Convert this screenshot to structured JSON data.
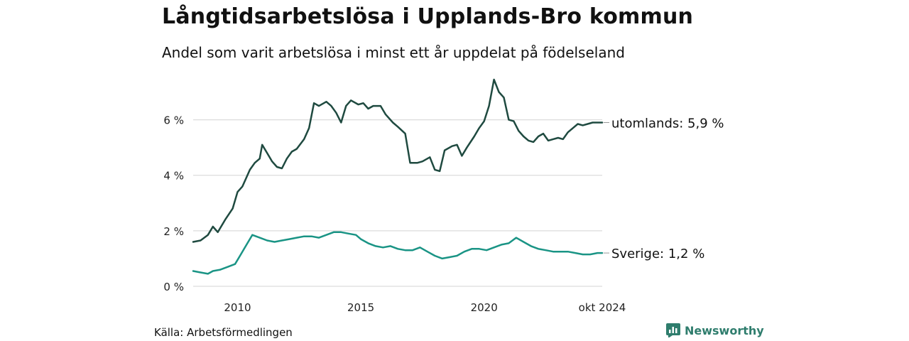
{
  "title": "Långtidsarbetslösa i Upplands-Bro kommun",
  "subtitle": "Andel som varit arbetslösa i minst ett år uppdelat på födelseland",
  "source": "Källa: Arbetsförmedlingen",
  "brand": {
    "name": "Newsworthy",
    "icon": "newsworthy-logo-icon",
    "color": "#2f7d6d"
  },
  "chart_data": {
    "type": "line",
    "title": "Långtidsarbetslösa i Upplands-Bro kommun",
    "subtitle": "Andel som varit arbetslösa i minst ett år uppdelat på födelseland",
    "xlabel": "",
    "ylabel": "",
    "xlim": [
      2008.2,
      2024.79
    ],
    "ylim": [
      0,
      7.5
    ],
    "grid": true,
    "y_ticks": [
      0,
      2,
      4,
      6
    ],
    "y_tick_labels": [
      "0 %",
      "2 %",
      "4 %",
      "6 %"
    ],
    "x_ticks": [
      2010,
      2015,
      2020,
      2024.79
    ],
    "x_tick_labels": [
      "2010",
      "2015",
      "2020",
      "okt 2024"
    ],
    "series": [
      {
        "name": "utomlands",
        "end_label": "utomlands: 5,9 %",
        "color": "#1f4a40",
        "x": [
          2008.2,
          2008.5,
          2008.8,
          2009.0,
          2009.2,
          2009.5,
          2009.8,
          2010.0,
          2010.2,
          2010.5,
          2010.7,
          2010.9,
          2011.0,
          2011.2,
          2011.4,
          2011.6,
          2011.8,
          2012.0,
          2012.2,
          2012.4,
          2012.7,
          2012.9,
          2013.1,
          2013.3,
          2013.6,
          2013.8,
          2014.0,
          2014.2,
          2014.4,
          2014.6,
          2014.9,
          2015.1,
          2015.3,
          2015.5,
          2015.8,
          2016.0,
          2016.3,
          2016.5,
          2016.8,
          2017.0,
          2017.3,
          2017.5,
          2017.8,
          2018.0,
          2018.2,
          2018.4,
          2018.7,
          2018.9,
          2019.1,
          2019.3,
          2019.6,
          2019.8,
          2020.0,
          2020.2,
          2020.4,
          2020.6,
          2020.8,
          2021.0,
          2021.2,
          2021.4,
          2021.6,
          2021.8,
          2022.0,
          2022.2,
          2022.4,
          2022.6,
          2022.8,
          2023.0,
          2023.2,
          2023.4,
          2023.6,
          2023.8,
          2024.0,
          2024.2,
          2024.4,
          2024.6,
          2024.79
        ],
        "values": [
          1.6,
          1.65,
          1.85,
          2.15,
          1.95,
          2.4,
          2.8,
          3.4,
          3.6,
          4.2,
          4.45,
          4.6,
          5.1,
          4.8,
          4.5,
          4.3,
          4.25,
          4.6,
          4.85,
          4.95,
          5.3,
          5.7,
          6.6,
          6.5,
          6.65,
          6.5,
          6.25,
          5.9,
          6.5,
          6.7,
          6.55,
          6.6,
          6.4,
          6.5,
          6.5,
          6.2,
          5.9,
          5.75,
          5.5,
          4.45,
          4.45,
          4.5,
          4.65,
          4.2,
          4.15,
          4.9,
          5.05,
          5.1,
          4.7,
          5.0,
          5.4,
          5.7,
          5.95,
          6.5,
          7.45,
          7.0,
          6.8,
          6.0,
          5.95,
          5.6,
          5.4,
          5.25,
          5.2,
          5.4,
          5.5,
          5.25,
          5.3,
          5.35,
          5.3,
          5.55,
          5.7,
          5.85,
          5.8,
          5.85,
          5.9,
          5.9,
          5.9
        ]
      },
      {
        "name": "Sverige",
        "end_label": "Sverige: 1,2 %",
        "color": "#1a9485",
        "x": [
          2008.2,
          2008.5,
          2008.8,
          2009.0,
          2009.3,
          2009.6,
          2009.9,
          2010.1,
          2010.3,
          2010.6,
          2010.9,
          2011.2,
          2011.5,
          2011.8,
          2012.1,
          2012.4,
          2012.7,
          2013.0,
          2013.3,
          2013.6,
          2013.9,
          2014.2,
          2014.5,
          2014.8,
          2015.0,
          2015.3,
          2015.6,
          2015.9,
          2016.2,
          2016.5,
          2016.8,
          2017.1,
          2017.4,
          2017.7,
          2018.0,
          2018.3,
          2018.6,
          2018.9,
          2019.2,
          2019.5,
          2019.8,
          2020.1,
          2020.4,
          2020.7,
          2021.0,
          2021.3,
          2021.6,
          2021.9,
          2022.2,
          2022.5,
          2022.8,
          2023.1,
          2023.4,
          2023.7,
          2024.0,
          2024.3,
          2024.6,
          2024.79
        ],
        "values": [
          0.55,
          0.5,
          0.45,
          0.55,
          0.6,
          0.7,
          0.8,
          1.1,
          1.4,
          1.85,
          1.75,
          1.65,
          1.6,
          1.65,
          1.7,
          1.75,
          1.8,
          1.8,
          1.75,
          1.85,
          1.95,
          1.95,
          1.9,
          1.85,
          1.7,
          1.55,
          1.45,
          1.4,
          1.45,
          1.35,
          1.3,
          1.3,
          1.4,
          1.25,
          1.1,
          1.0,
          1.05,
          1.1,
          1.25,
          1.35,
          1.35,
          1.3,
          1.4,
          1.5,
          1.55,
          1.75,
          1.6,
          1.45,
          1.35,
          1.3,
          1.25,
          1.25,
          1.25,
          1.2,
          1.15,
          1.15,
          1.2,
          1.2
        ]
      }
    ]
  }
}
